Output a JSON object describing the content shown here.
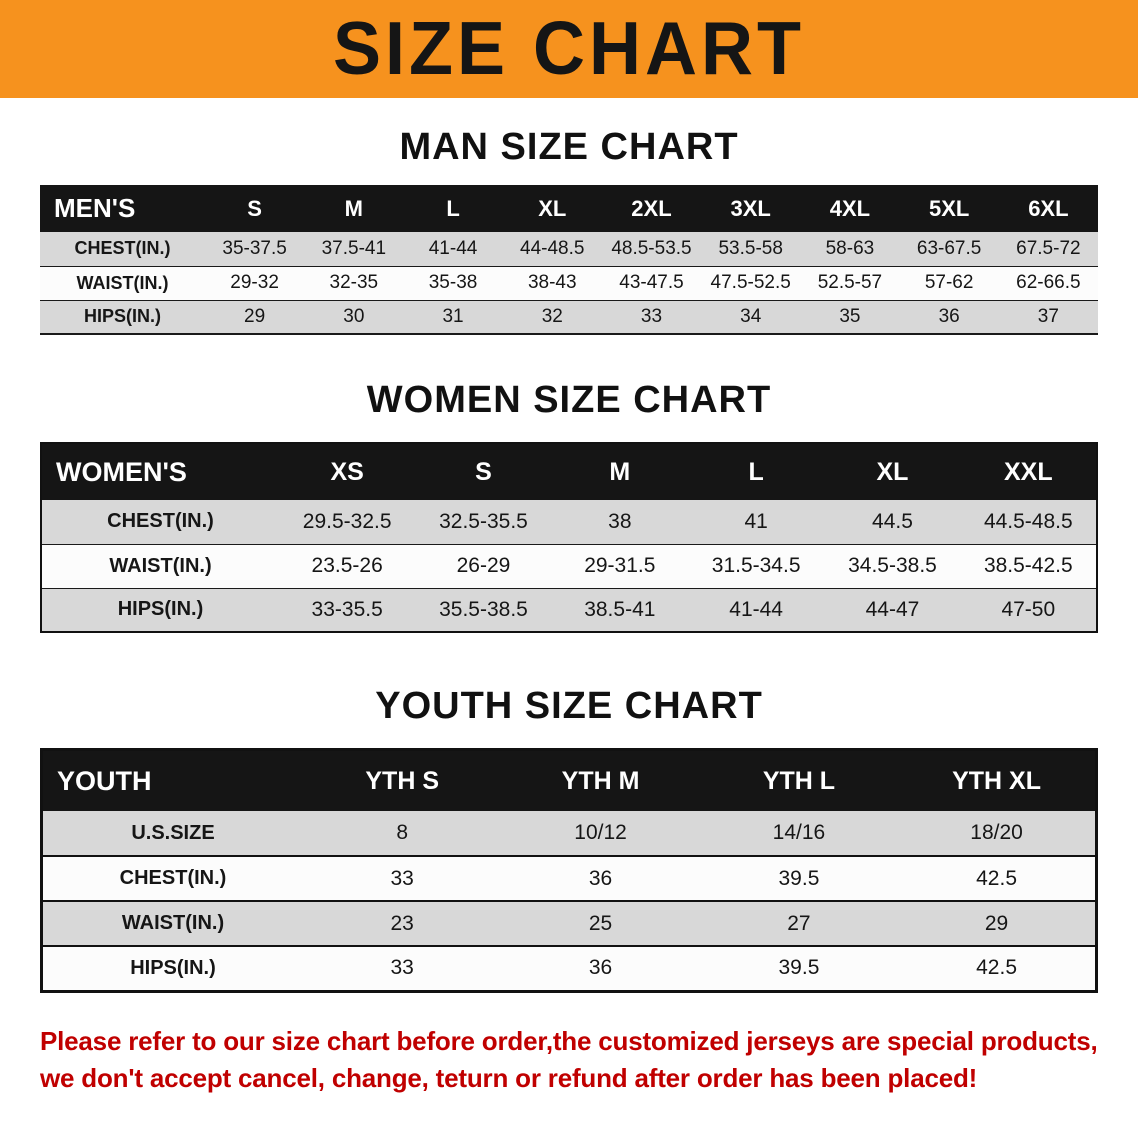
{
  "banner": {
    "title": "SIZE CHART"
  },
  "colors": {
    "banner_bg": "#F6921E",
    "header_bg": "#151515",
    "row_alt": "#D8D8D8",
    "footer_red": "#C00000"
  },
  "sections": [
    {
      "id": "men",
      "heading": "MAN SIZE CHART",
      "corner_label": "MEN'S",
      "columns": [
        "S",
        "M",
        "L",
        "XL",
        "2XL",
        "3XL",
        "4XL",
        "5XL",
        "6XL"
      ],
      "rows": [
        {
          "label": "CHEST(IN.)",
          "values": [
            "35-37.5",
            "37.5-41",
            "41-44",
            "44-48.5",
            "48.5-53.5",
            "53.5-58",
            "58-63",
            "63-67.5",
            "67.5-72"
          ]
        },
        {
          "label": "WAIST(IN.)",
          "values": [
            "29-32",
            "32-35",
            "35-38",
            "38-43",
            "43-47.5",
            "47.5-52.5",
            "52.5-57",
            "57-62",
            "62-66.5"
          ]
        },
        {
          "label": "HIPS(IN.)",
          "values": [
            "29",
            "30",
            "31",
            "32",
            "33",
            "34",
            "35",
            "36",
            "37"
          ]
        }
      ]
    },
    {
      "id": "women",
      "heading": "WOMEN SIZE CHART",
      "corner_label": "WOMEN'S",
      "columns": [
        "XS",
        "S",
        "M",
        "L",
        "XL",
        "XXL"
      ],
      "rows": [
        {
          "label": "CHEST(IN.)",
          "values": [
            "29.5-32.5",
            "32.5-35.5",
            "38",
            "41",
            "44.5",
            "44.5-48.5"
          ]
        },
        {
          "label": "WAIST(IN.)",
          "values": [
            "23.5-26",
            "26-29",
            "29-31.5",
            "31.5-34.5",
            "34.5-38.5",
            "38.5-42.5"
          ]
        },
        {
          "label": "HIPS(IN.)",
          "values": [
            "33-35.5",
            "35.5-38.5",
            "38.5-41",
            "41-44",
            "44-47",
            "47-50"
          ]
        }
      ]
    },
    {
      "id": "youth",
      "heading": "YOUTH SIZE CHART",
      "corner_label": "YOUTH",
      "columns": [
        "YTH S",
        "YTH M",
        "YTH L",
        "YTH XL"
      ],
      "rows": [
        {
          "label": "U.S.SIZE",
          "values": [
            "8",
            "10/12",
            "14/16",
            "18/20"
          ]
        },
        {
          "label": "CHEST(IN.)",
          "values": [
            "33",
            "36",
            "39.5",
            "42.5"
          ]
        },
        {
          "label": "WAIST(IN.)",
          "values": [
            "23",
            "25",
            "27",
            "29"
          ]
        },
        {
          "label": "HIPS(IN.)",
          "values": [
            "33",
            "36",
            "39.5",
            "42.5"
          ]
        }
      ]
    }
  ],
  "footer": {
    "line1": "Please refer to our size chart before order,the customized jerseys are special products,",
    "line2": "we don't accept cancel, change, teturn or refund after order has been placed!"
  }
}
